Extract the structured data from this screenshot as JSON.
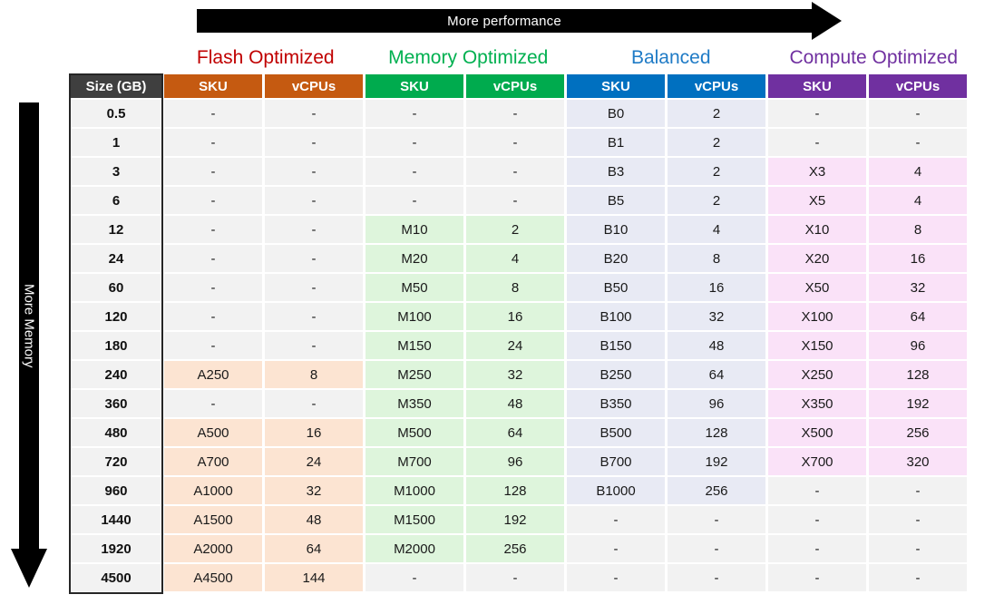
{
  "arrows": {
    "top_label": "More performance",
    "left_label": "More Memory"
  },
  "chart_data": {
    "type": "table",
    "size_header": "Size (GB)",
    "column_headers": [
      "SKU",
      "vCPUs"
    ],
    "empty_marker": "-",
    "empty_cell_bg": "#F2F2F2",
    "size_header_bg": "#3F3F3F",
    "categories": [
      {
        "name": "Flash Optimized",
        "title_color": "#C00000",
        "header_bg": "#C55A11",
        "cell_bg": "#FCE4D2"
      },
      {
        "name": "Memory Optimized",
        "title_color": "#00B050",
        "header_bg": "#00AB4E",
        "cell_bg": "#DEF5DC"
      },
      {
        "name": "Balanced",
        "title_color": "#1F7BC6",
        "header_bg": "#0070C0",
        "cell_bg": "#E8EAF4"
      },
      {
        "name": "Compute Optimized",
        "title_color": "#7030A0",
        "header_bg": "#7030A0",
        "cell_bg": "#FAE2F8"
      }
    ],
    "rows": [
      {
        "size": "0.5",
        "cells": [
          [
            "-",
            "-"
          ],
          [
            "-",
            "-"
          ],
          [
            "B0",
            "2"
          ],
          [
            "-",
            "-"
          ]
        ]
      },
      {
        "size": "1",
        "cells": [
          [
            "-",
            "-"
          ],
          [
            "-",
            "-"
          ],
          [
            "B1",
            "2"
          ],
          [
            "-",
            "-"
          ]
        ]
      },
      {
        "size": "3",
        "cells": [
          [
            "-",
            "-"
          ],
          [
            "-",
            "-"
          ],
          [
            "B3",
            "2"
          ],
          [
            "X3",
            "4"
          ]
        ]
      },
      {
        "size": "6",
        "cells": [
          [
            "-",
            "-"
          ],
          [
            "-",
            "-"
          ],
          [
            "B5",
            "2"
          ],
          [
            "X5",
            "4"
          ]
        ]
      },
      {
        "size": "12",
        "cells": [
          [
            "-",
            "-"
          ],
          [
            "M10",
            "2"
          ],
          [
            "B10",
            "4"
          ],
          [
            "X10",
            "8"
          ]
        ]
      },
      {
        "size": "24",
        "cells": [
          [
            "-",
            "-"
          ],
          [
            "M20",
            "4"
          ],
          [
            "B20",
            "8"
          ],
          [
            "X20",
            "16"
          ]
        ]
      },
      {
        "size": "60",
        "cells": [
          [
            "-",
            "-"
          ],
          [
            "M50",
            "8"
          ],
          [
            "B50",
            "16"
          ],
          [
            "X50",
            "32"
          ]
        ]
      },
      {
        "size": "120",
        "cells": [
          [
            "-",
            "-"
          ],
          [
            "M100",
            "16"
          ],
          [
            "B100",
            "32"
          ],
          [
            "X100",
            "64"
          ]
        ]
      },
      {
        "size": "180",
        "cells": [
          [
            "-",
            "-"
          ],
          [
            "M150",
            "24"
          ],
          [
            "B150",
            "48"
          ],
          [
            "X150",
            "96"
          ]
        ]
      },
      {
        "size": "240",
        "cells": [
          [
            "A250",
            "8"
          ],
          [
            "M250",
            "32"
          ],
          [
            "B250",
            "64"
          ],
          [
            "X250",
            "128"
          ]
        ]
      },
      {
        "size": "360",
        "cells": [
          [
            "-",
            "-"
          ],
          [
            "M350",
            "48"
          ],
          [
            "B350",
            "96"
          ],
          [
            "X350",
            "192"
          ]
        ]
      },
      {
        "size": "480",
        "cells": [
          [
            "A500",
            "16"
          ],
          [
            "M500",
            "64"
          ],
          [
            "B500",
            "128"
          ],
          [
            "X500",
            "256"
          ]
        ]
      },
      {
        "size": "720",
        "cells": [
          [
            "A700",
            "24"
          ],
          [
            "M700",
            "96"
          ],
          [
            "B700",
            "192"
          ],
          [
            "X700",
            "320"
          ]
        ]
      },
      {
        "size": "960",
        "cells": [
          [
            "A1000",
            "32"
          ],
          [
            "M1000",
            "128"
          ],
          [
            "B1000",
            "256"
          ],
          [
            "-",
            "-"
          ]
        ]
      },
      {
        "size": "1440",
        "cells": [
          [
            "A1500",
            "48"
          ],
          [
            "M1500",
            "192"
          ],
          [
            "-",
            "-"
          ],
          [
            "-",
            "-"
          ]
        ]
      },
      {
        "size": "1920",
        "cells": [
          [
            "A2000",
            "64"
          ],
          [
            "M2000",
            "256"
          ],
          [
            "-",
            "-"
          ],
          [
            "-",
            "-"
          ]
        ]
      },
      {
        "size": "4500",
        "cells": [
          [
            "A4500",
            "144"
          ],
          [
            "-",
            "-"
          ],
          [
            "-",
            "-"
          ],
          [
            "-",
            "-"
          ]
        ]
      }
    ]
  }
}
